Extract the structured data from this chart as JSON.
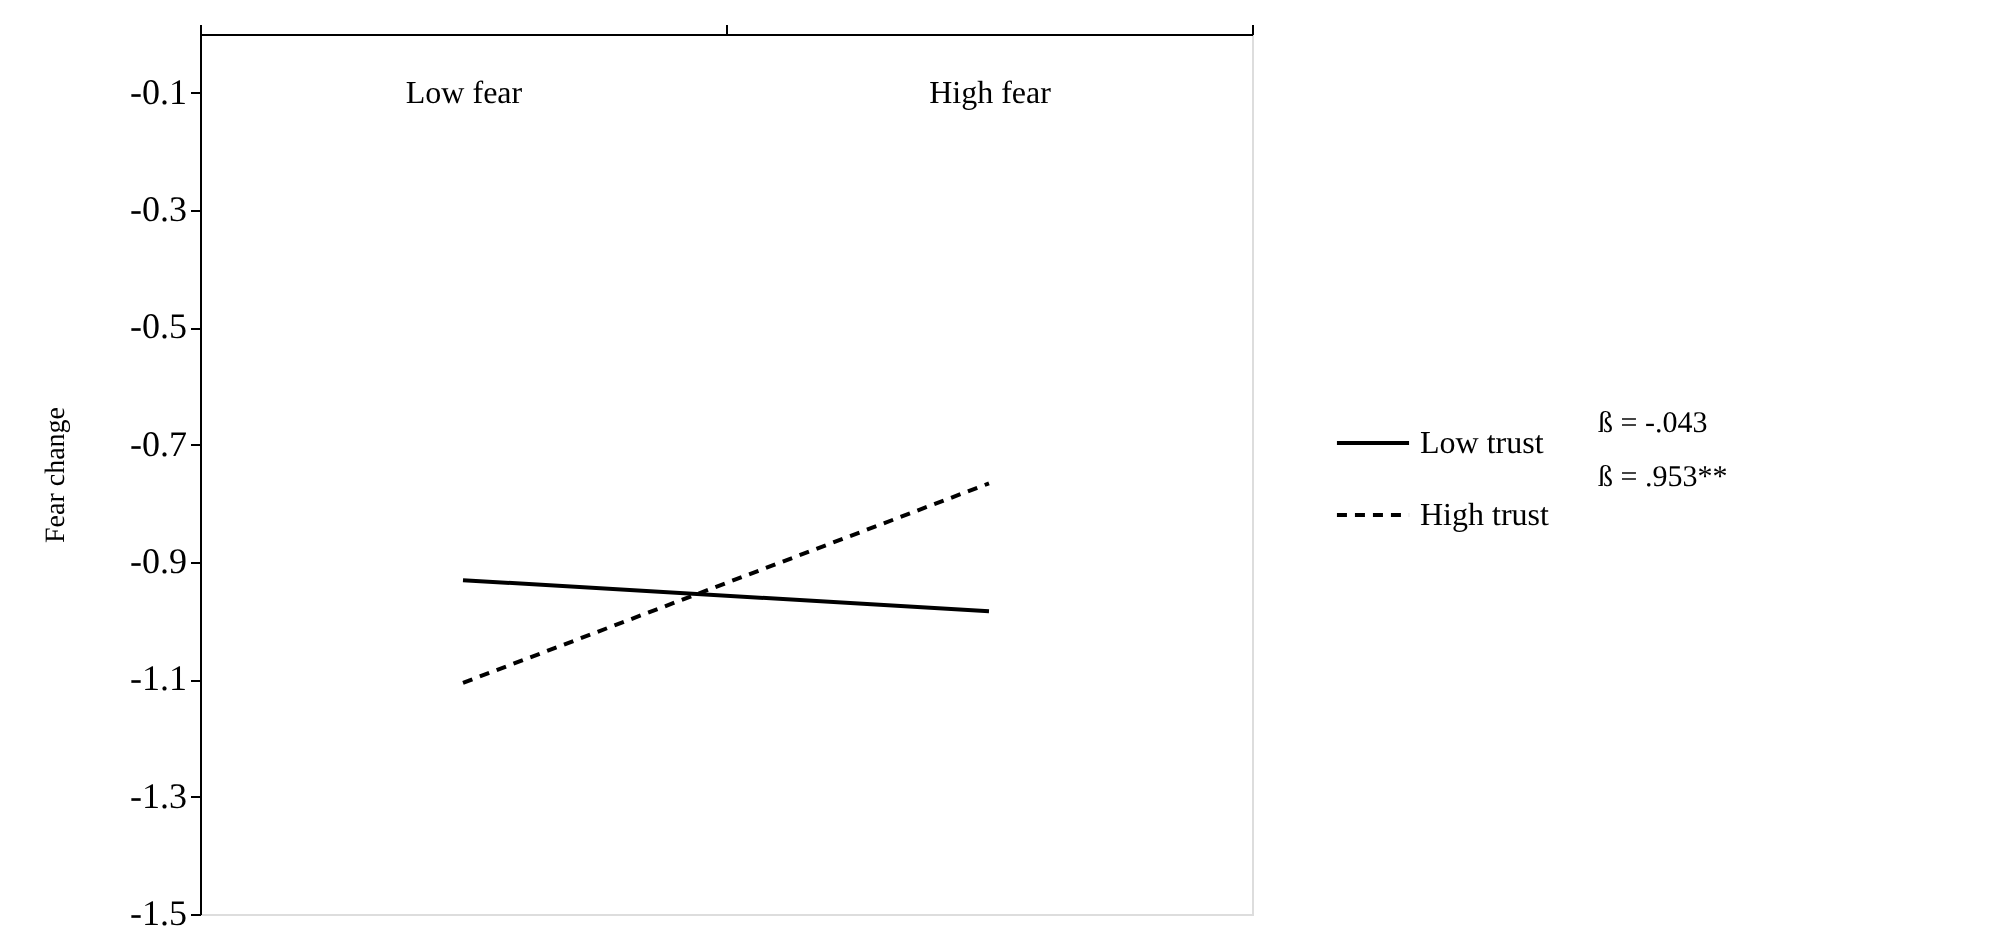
{
  "chart_data": {
    "type": "line",
    "ylabel": "Fear change",
    "categories": [
      "Low fear",
      "High fear"
    ],
    "series": [
      {
        "name": "Low trust",
        "color": "#000000",
        "line_style": "solid",
        "values": [
          -0.931,
          -0.984
        ]
      },
      {
        "name": "High trust",
        "color": "#000000",
        "line_style": "dashed",
        "values": [
          -1.106,
          -0.766
        ]
      }
    ],
    "ylim": [
      -1.5,
      0
    ],
    "yticks": [
      -0.1,
      -0.3,
      -0.5,
      -0.7,
      -0.9,
      -1.1,
      -1.3,
      -1.5
    ],
    "grid": false,
    "legend": "right",
    "marker": "none",
    "annotations": [
      "ß = -.043",
      "ß = .953**"
    ]
  }
}
